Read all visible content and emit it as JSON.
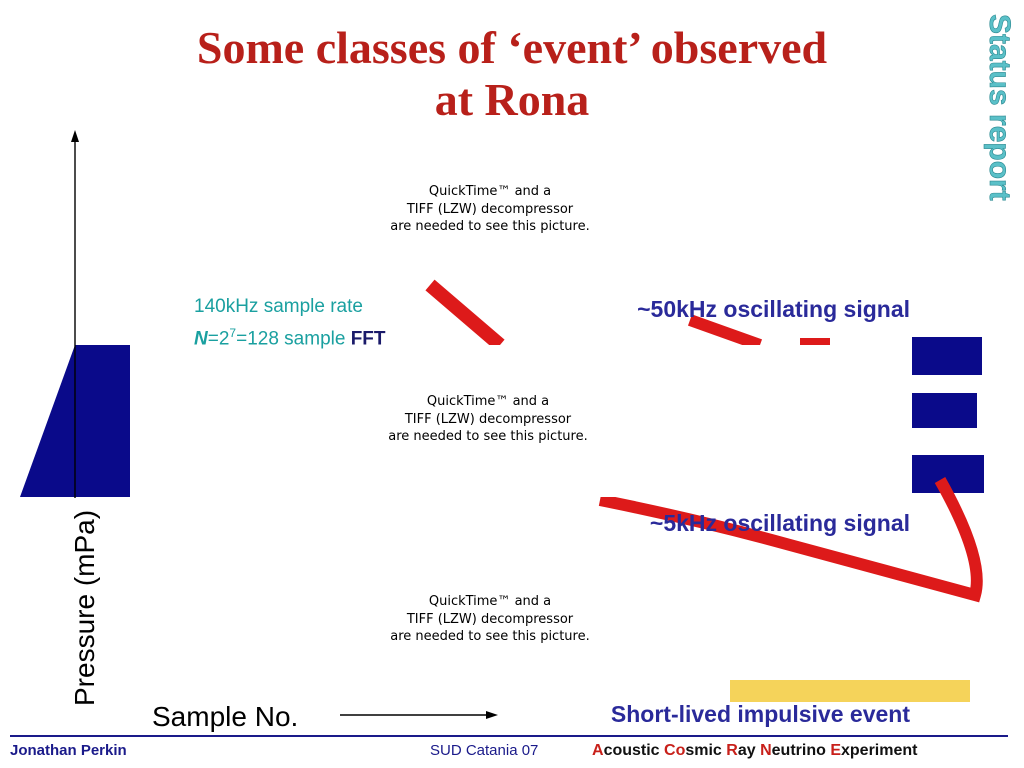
{
  "slide": {
    "title_line1": "Some classes of ‘event’ observed",
    "title_line2": "at Rona",
    "side_label": "Status report"
  },
  "placeholder": {
    "line1": "QuickTime™ and a",
    "line2": "TIFF (LZW) decompressor",
    "line3": "are needed to see this picture."
  },
  "annotations": {
    "sample_rate": "140kHz sample rate",
    "fft_n": "N",
    "fft_eq": "=2",
    "fft_exp": "7",
    "fft_rest": "=128 sample ",
    "fft_word": "FFT",
    "signal_50k": "~50kHz oscillating signal",
    "signal_5k": "~5kHz oscillating signal",
    "impulsive": "Short-lived impulsive event"
  },
  "axes": {
    "y_label": "Pressure (mPa)",
    "x_label": "Sample No."
  },
  "footer": {
    "author": "Jonathan Perkin",
    "event": "SUD Catania 07",
    "acro": [
      {
        "cap": "A",
        "rest": "coustic "
      },
      {
        "cap": "Co",
        "rest": "smic "
      },
      {
        "cap": "R",
        "rest": "ay "
      },
      {
        "cap": "N",
        "rest": "eutrino "
      },
      {
        "cap": "E",
        "rest": "xperiment"
      }
    ]
  },
  "colors": {
    "title": "#b8201a",
    "side_label": "#5ac0c8",
    "accent_blue": "#2a2a9a",
    "teal": "#1aa0a0",
    "footer_line": "#1a1a8a"
  }
}
